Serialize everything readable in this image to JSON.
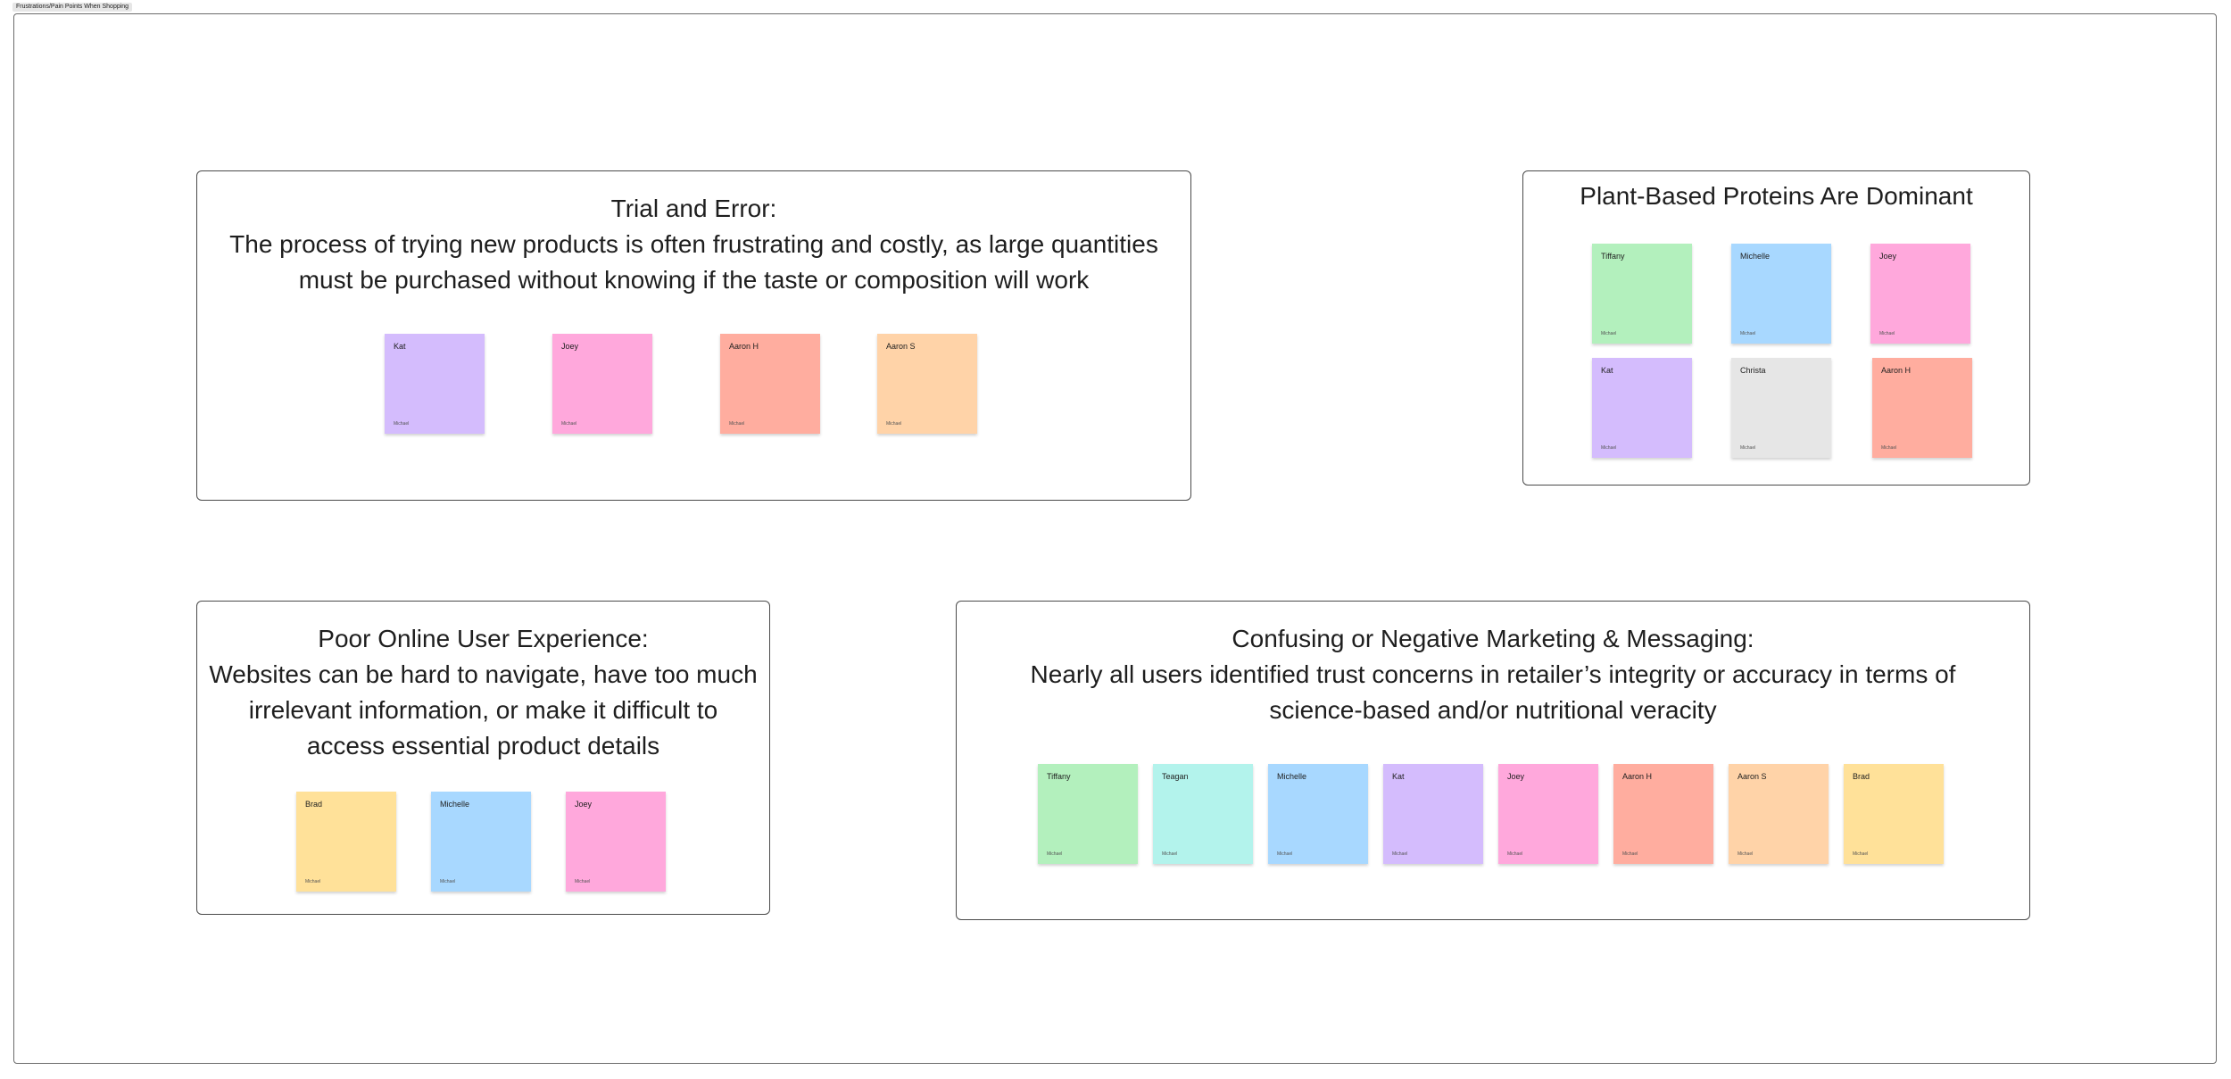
{
  "board": {
    "frame_title": "Frustrations/Pain Points When Shopping"
  },
  "colors": {
    "green": "#b3f0bd",
    "teal": "#b3f3ec",
    "blue": "#a8d8ff",
    "purple": "#d4bcfd",
    "pink": "#ffa8dc",
    "salmon": "#ffad9f",
    "peach": "#ffd3a8",
    "yellow": "#ffe199",
    "gray": "#e6e6e6"
  },
  "sections": {
    "trial": {
      "title_lines": [
        "Trial and Error:",
        "The process of trying new products is often frustrating and costly, as large quantities",
        "must be purchased without knowing if the taste or composition will work"
      ],
      "stickies": [
        {
          "name": "Kat",
          "author": "Michael",
          "color": "purple"
        },
        {
          "name": "Joey",
          "author": "Michael",
          "color": "pink"
        },
        {
          "name": "Aaron H",
          "author": "Michael",
          "color": "salmon"
        },
        {
          "name": "Aaron S",
          "author": "Michael",
          "color": "peach"
        }
      ]
    },
    "plant": {
      "title_lines": [
        "Plant-Based Proteins Are Dominant"
      ],
      "stickies": [
        {
          "name": "Tiffany",
          "author": "Michael",
          "color": "green"
        },
        {
          "name": "Michelle",
          "author": "Michael",
          "color": "blue"
        },
        {
          "name": "Joey",
          "author": "Michael",
          "color": "pink"
        },
        {
          "name": "Kat",
          "author": "Michael",
          "color": "purple"
        },
        {
          "name": "Christa",
          "author": "Michael",
          "color": "gray"
        },
        {
          "name": "Aaron H",
          "author": "Michael",
          "color": "salmon"
        }
      ]
    },
    "poor": {
      "title_lines": [
        "Poor Online User Experience:",
        "Websites can be hard to navigate, have too much",
        "irrelevant information, or make it difficult to",
        "access essential product details"
      ],
      "stickies": [
        {
          "name": "Brad",
          "author": "Michael",
          "color": "yellow"
        },
        {
          "name": "Michelle",
          "author": "Michael",
          "color": "blue"
        },
        {
          "name": "Joey",
          "author": "Michael",
          "color": "pink"
        }
      ]
    },
    "confusing": {
      "title_lines": [
        "Confusing or Negative Marketing & Messaging:",
        "Nearly all users identified trust concerns in  retailer’s integrity or accuracy in terms of",
        "science-based and/or nutritional veracity"
      ],
      "stickies": [
        {
          "name": "Tiffany",
          "author": "Michael",
          "color": "green"
        },
        {
          "name": "Teagan",
          "author": "Michael",
          "color": "teal"
        },
        {
          "name": "Michelle",
          "author": "Michael",
          "color": "blue"
        },
        {
          "name": "Kat",
          "author": "Michael",
          "color": "purple"
        },
        {
          "name": "Joey",
          "author": "Michael",
          "color": "pink"
        },
        {
          "name": "Aaron H",
          "author": "Michael",
          "color": "salmon"
        },
        {
          "name": "Aaron S",
          "author": "Michael",
          "color": "peach"
        },
        {
          "name": "Brad",
          "author": "Michael",
          "color": "yellow"
        }
      ]
    }
  }
}
